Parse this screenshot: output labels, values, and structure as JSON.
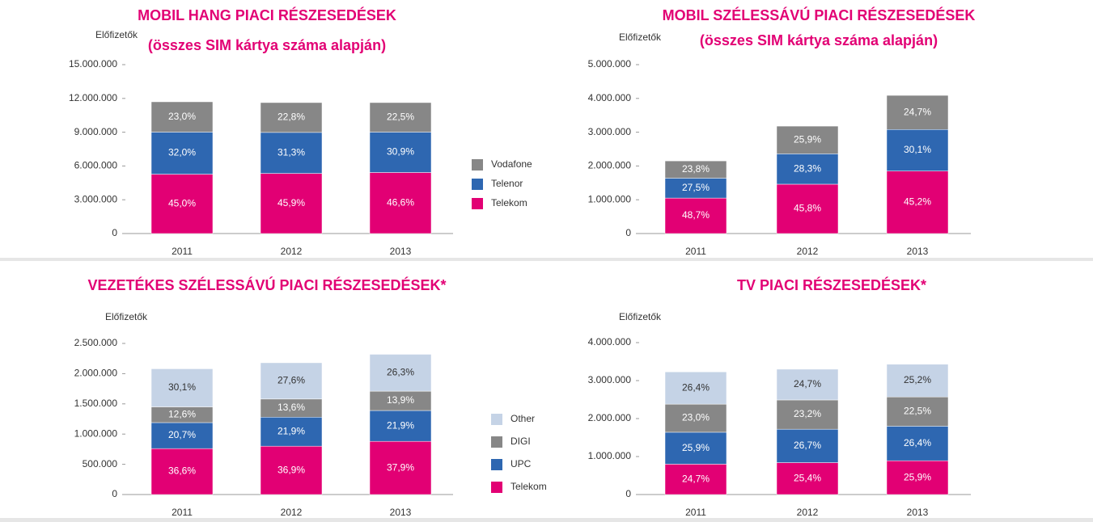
{
  "chart_data": [
    {
      "type": "bar",
      "stacked": true,
      "title": "MOBIL HANG PIACI RÉSZESEDÉSEK",
      "subtitle": "(összes SIM kártya száma alapján)",
      "y_label": "Előfizetők",
      "categories": [
        "2011",
        "2012",
        "2013"
      ],
      "legend": true,
      "ylim": [
        0,
        15000000
      ],
      "yticks": [
        0,
        {
          "value": 3000000,
          "label": "3.000.000"
        },
        {
          "value": 6000000,
          "label": "6.000.000"
        },
        {
          "value": 9000000,
          "label": "9.000.000"
        },
        {
          "value": 12000000,
          "label": "12.000.000"
        },
        {
          "value": 15000000,
          "label": "15.000.000"
        }
      ],
      "series": [
        {
          "name": "Telekom",
          "color": "#e20074",
          "values": [
            5270000,
            5340000,
            5420000
          ],
          "value_labels": [
            "45,0%",
            "45,9%",
            "46,6%"
          ]
        },
        {
          "name": "Telenor",
          "color": "#2e67b1",
          "values": [
            3740000,
            3640000,
            3590000
          ],
          "value_labels": [
            "32,0%",
            "31,3%",
            "30,9%"
          ]
        },
        {
          "name": "Vodafone",
          "color": "#878787",
          "values": [
            2690000,
            2650000,
            2620000
          ],
          "value_labels": [
            "23,0%",
            "22,8%",
            "22,5%"
          ]
        }
      ]
    },
    {
      "type": "bar",
      "stacked": true,
      "title": "MOBIL SZÉLESSÁVÚ PIACI RÉSZESEDÉSEK",
      "subtitle": "(összes SIM kártya száma alapján)",
      "y_label": "Előfizetők",
      "categories": [
        "2011",
        "2012",
        "2013"
      ],
      "legend": false,
      "ylim": [
        0,
        5000000
      ],
      "yticks": [
        0,
        {
          "value": 1000000,
          "label": "1.000.000"
        },
        {
          "value": 2000000,
          "label": "2.000.000"
        },
        {
          "value": 3000000,
          "label": "3.000.000"
        },
        {
          "value": 4000000,
          "label": "4.000.000"
        },
        {
          "value": 5000000,
          "label": "5.000.000"
        }
      ],
      "series": [
        {
          "name": "Telekom",
          "color": "#e20074",
          "values": [
            1050000,
            1460000,
            1850000
          ],
          "value_labels": [
            "48,7%",
            "45,8%",
            "45,2%"
          ]
        },
        {
          "name": "Telenor",
          "color": "#2e67b1",
          "values": [
            590000,
            900000,
            1230000
          ],
          "value_labels": [
            "27,5%",
            "28,3%",
            "30,1%"
          ]
        },
        {
          "name": "Vodafone",
          "color": "#878787",
          "values": [
            510000,
            820000,
            1010000
          ],
          "value_labels": [
            "23,8%",
            "25,9%",
            "24,7%"
          ]
        }
      ]
    },
    {
      "type": "bar",
      "stacked": true,
      "title": "VEZETÉKES SZÉLESSÁVÚ PIACI RÉSZESEDÉSEK*",
      "y_label": "Előfizetők",
      "categories": [
        "2011",
        "2012",
        "2013"
      ],
      "legend": true,
      "ylim": [
        0,
        2500000
      ],
      "yticks": [
        0,
        {
          "value": 500000,
          "label": "500.000"
        },
        {
          "value": 1000000,
          "label": "1.000.000"
        },
        {
          "value": 1500000,
          "label": "1.500.000"
        },
        {
          "value": 2000000,
          "label": "2.000.000"
        },
        {
          "value": 2500000,
          "label": "2.500.000"
        }
      ],
      "series": [
        {
          "name": "Telekom",
          "color": "#e20074",
          "values": [
            760000,
            800000,
            880000
          ],
          "value_labels": [
            "36,6%",
            "36,9%",
            "37,9%"
          ]
        },
        {
          "name": "UPC",
          "color": "#2e67b1",
          "values": [
            430000,
            480000,
            510000
          ],
          "value_labels": [
            "20,7%",
            "21,9%",
            "21,9%"
          ]
        },
        {
          "name": "DIGI",
          "color": "#878787",
          "values": [
            260000,
            300000,
            320000
          ],
          "value_labels": [
            "12,6%",
            "13,6%",
            "13,9%"
          ]
        },
        {
          "name": "Other",
          "color": "#c5d3e6",
          "values": [
            630000,
            600000,
            610000
          ],
          "value_labels": [
            "30,1%",
            "27,6%",
            "26,3%"
          ]
        }
      ]
    },
    {
      "type": "bar",
      "stacked": true,
      "title": "TV PIACI RÉSZESEDÉSEK*",
      "y_label": "Előfizetők",
      "categories": [
        "2011",
        "2012",
        "2013"
      ],
      "legend": false,
      "ylim": [
        0,
        4000000
      ],
      "yticks": [
        0,
        {
          "value": 1000000,
          "label": "1.000.000"
        },
        {
          "value": 2000000,
          "label": "2.000.000"
        },
        {
          "value": 3000000,
          "label": "3.000.000"
        },
        {
          "value": 4000000,
          "label": "4.000.000"
        }
      ],
      "series": [
        {
          "name": "Telekom",
          "color": "#e20074",
          "values": [
            800000,
            840000,
            890000
          ],
          "value_labels": [
            "24,7%",
            "25,4%",
            "25,9%"
          ]
        },
        {
          "name": "UPC",
          "color": "#2e67b1",
          "values": [
            840000,
            880000,
            910000
          ],
          "value_labels": [
            "25,9%",
            "26,7%",
            "26,4%"
          ]
        },
        {
          "name": "DIGI",
          "color": "#878787",
          "values": [
            740000,
            770000,
            770000
          ],
          "value_labels": [
            "23,0%",
            "23,2%",
            "22,5%"
          ]
        },
        {
          "name": "Other",
          "color": "#c5d3e6",
          "values": [
            850000,
            810000,
            860000
          ],
          "value_labels": [
            "26,4%",
            "24,7%",
            "25,2%"
          ]
        }
      ]
    }
  ]
}
